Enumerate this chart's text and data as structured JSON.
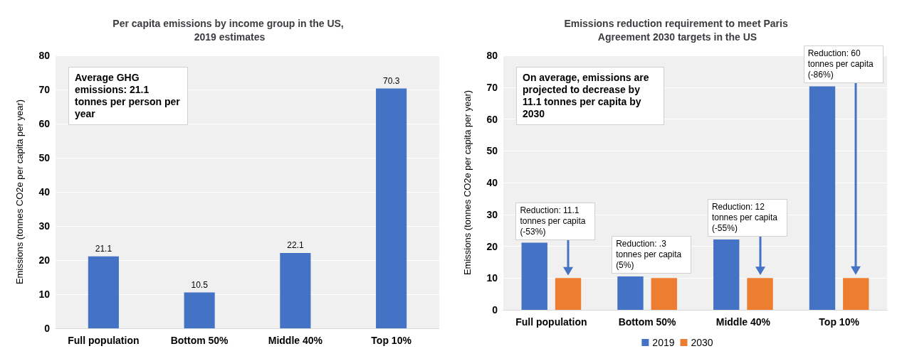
{
  "chart_data": [
    {
      "type": "bar",
      "title": "Per capita emissions by income group in the US, 2019 estimates",
      "ylabel": "Emissions (tonnes CO2e per capita per year)",
      "categories": [
        "Full population",
        "Bottom 50%",
        "Middle 40%",
        "Top 10%"
      ],
      "values": [
        21.1,
        10.5,
        22.1,
        70.3
      ],
      "color": "#4472c4",
      "ylim": [
        0,
        80
      ],
      "yticks": [
        0,
        10,
        20,
        30,
        40,
        50,
        60,
        70,
        80
      ],
      "grid": "y",
      "data_labels": true,
      "annotations": [
        "Average GHG emissions: 21.1 tonnes per person per year"
      ]
    },
    {
      "type": "bar",
      "title": "Emissions reduction requirement to meet Paris Agreement 2030 targets in the US",
      "ylabel": "Emissions (tonnes CO2e per capita per year)",
      "categories": [
        "Full population",
        "Bottom 50%",
        "Middle 40%",
        "Top 10%"
      ],
      "series": [
        {
          "name": "2019",
          "color": "#4472c4",
          "values": [
            21.1,
            10.5,
            22.1,
            70.3
          ]
        },
        {
          "name": "2030",
          "color": "#ed7d31",
          "values": [
            10,
            10,
            10,
            10
          ]
        }
      ],
      "ylim": [
        0,
        80
      ],
      "yticks": [
        0,
        10,
        20,
        30,
        40,
        50,
        60,
        70,
        80
      ],
      "grid": "y",
      "legend": "bottom",
      "annotations": [
        "On average, emissions are projected to decrease by 11.1 tonnes per capita by 2030",
        "Reduction: 11.1 tonnes per capita (-53%)",
        "Reduction: .3 tonnes per capita (5%)",
        "Reduction: 12 tonnes per capita (-55%)",
        "Reduction: 60 tonnes per capita (-86%)"
      ]
    }
  ]
}
